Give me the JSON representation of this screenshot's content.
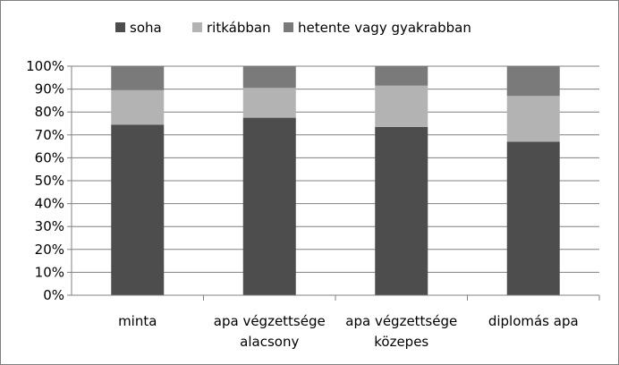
{
  "chart_data": {
    "type": "bar",
    "stacked": true,
    "percent_stacked": true,
    "categories": [
      [
        "minta"
      ],
      [
        "apa végzettsége",
        "alacsony"
      ],
      [
        "apa végzettsége",
        "közepes"
      ],
      [
        "diplomás apa"
      ]
    ],
    "series": [
      {
        "name": "soha",
        "color": "#4d4d4d",
        "values": [
          74.5,
          77.5,
          73.5,
          67
        ]
      },
      {
        "name": "ritkábban",
        "color": "#b3b3b3",
        "values": [
          15,
          13,
          18,
          20
        ]
      },
      {
        "name": "hetente vagy gyakrabban",
        "color": "#7a7a7a",
        "values": [
          10.5,
          9.5,
          8.5,
          13
        ]
      }
    ],
    "y_ticks": [
      "0%",
      "10%",
      "20%",
      "30%",
      "40%",
      "50%",
      "60%",
      "70%",
      "80%",
      "90%",
      "100%"
    ],
    "ylim": [
      0,
      100
    ],
    "grid": true,
    "legend_position": "top"
  }
}
